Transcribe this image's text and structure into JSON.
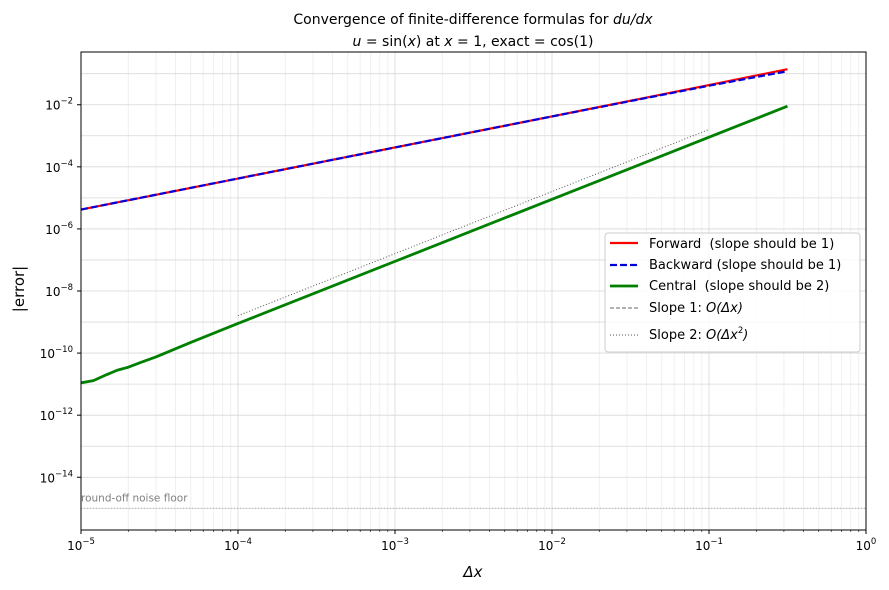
{
  "chart_data": {
    "type": "line",
    "title_line1_plain": "Convergence of finite-difference formulas for ",
    "title_line1_math": "du/dx",
    "title_line2_plain_a": "",
    "title_line2_math_a": "u",
    "title_line2_plain_b": " = sin(",
    "title_line2_math_b": "x",
    "title_line2_plain_c": ") at ",
    "title_line2_math_c": "x",
    "title_line2_plain_d": " = 1, exact  = cos(1)",
    "xlabel": "Δx",
    "ylabel": "|error|",
    "xscale": "log",
    "yscale": "log",
    "xlim": [
      1e-05,
      1
    ],
    "ylim": [
      2e-16,
      0.5
    ],
    "x_ticks": [
      1e-05,
      0.0001,
      0.001,
      0.01,
      0.1,
      1
    ],
    "x_tick_labels": [
      {
        "base": "10",
        "exp": "−5"
      },
      {
        "base": "10",
        "exp": "−4"
      },
      {
        "base": "10",
        "exp": "−3"
      },
      {
        "base": "10",
        "exp": "−2"
      },
      {
        "base": "10",
        "exp": "−1"
      },
      {
        "base": "10",
        "exp": "0"
      }
    ],
    "y_ticks": [
      1e-14,
      1e-12,
      1e-10,
      1e-08,
      1e-06,
      0.0001,
      0.01
    ],
    "y_tick_labels": [
      {
        "base": "10",
        "exp": "−14"
      },
      {
        "base": "10",
        "exp": "−12"
      },
      {
        "base": "10",
        "exp": "−10"
      },
      {
        "base": "10",
        "exp": "−8"
      },
      {
        "base": "10",
        "exp": "−6"
      },
      {
        "base": "10",
        "exp": "−4"
      },
      {
        "base": "10",
        "exp": "−2"
      }
    ],
    "grid": true,
    "legend_position": "center-right",
    "series": [
      {
        "name": "Forward  (slope should be 1)",
        "color": "#ff0000",
        "style": "solid",
        "width": 2.2,
        "x": [
          1e-05,
          0.0001,
          0.001,
          0.01,
          0.1,
          0.316
        ],
        "y": [
          4.2e-06,
          4.2e-05,
          0.00042,
          0.0042,
          0.043,
          0.14
        ]
      },
      {
        "name": "Backward (slope should be 1)",
        "color": "#0000dd",
        "style": "dashed",
        "width": 2.2,
        "x": [
          1e-05,
          0.0001,
          0.001,
          0.01,
          0.1,
          0.316
        ],
        "y": [
          4.2e-06,
          4.2e-05,
          0.00042,
          0.0042,
          0.041,
          0.12
        ]
      },
      {
        "name": "Central  (slope should be 2)",
        "color": "#008000",
        "style": "solid",
        "width": 2.8,
        "x": [
          1e-05,
          1.2e-05,
          1.45e-05,
          1.7e-05,
          2e-05,
          2.4e-05,
          3e-05,
          5e-05,
          0.0001,
          0.001,
          0.01,
          0.1,
          0.316
        ],
        "y": [
          1.1e-11,
          1.3e-11,
          2e-11,
          2.8e-11,
          3.5e-11,
          5e-11,
          7.5e-11,
          2.2e-10,
          9e-10,
          9e-08,
          9e-06,
          0.0009,
          0.009
        ]
      },
      {
        "name": "Slope 1: ",
        "name_math": "O(Δx)",
        "color": "#666666",
        "style": "dashed-thin",
        "width": 1,
        "x": [
          0.0001,
          0.1
        ],
        "y": [
          4.4e-05,
          0.044
        ]
      },
      {
        "name": "Slope 2: ",
        "name_math": "O(Δx",
        "name_math_sup": "2",
        "name_math_end": ")",
        "color": "#555555",
        "style": "dotted",
        "width": 1,
        "x": [
          0.0001,
          0.1
        ],
        "y": [
          1.6e-09,
          0.0016
        ]
      },
      {
        "name": "",
        "color": "#aaaaaa",
        "style": "dotted",
        "width": 0.8,
        "x": [
          1e-05,
          1
        ],
        "y": [
          1e-15,
          1e-15
        ]
      }
    ],
    "annotations": [
      {
        "text": "round-off noise floor",
        "x": 1e-05,
        "y": 2.2e-15
      }
    ]
  }
}
